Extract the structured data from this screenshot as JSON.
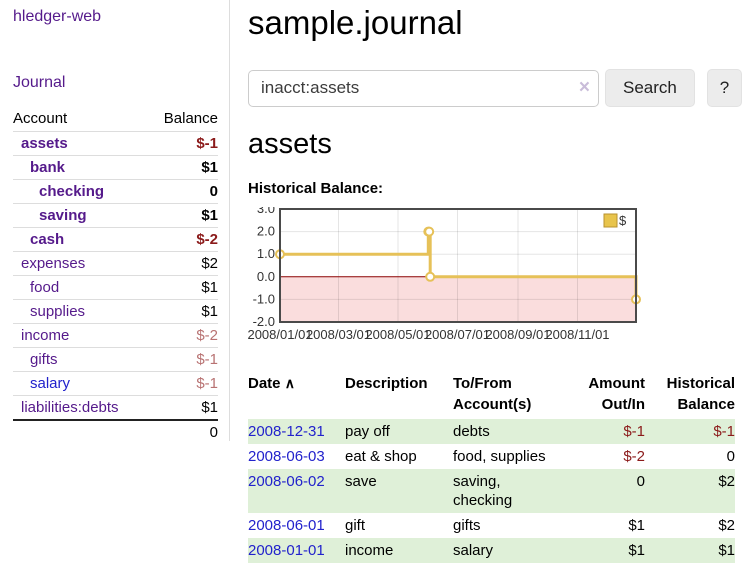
{
  "colors": {
    "link_purple": "#551a8b",
    "link_blue": "#2222cc",
    "negative_strong": "#8b1a1a",
    "negative_faded": "#b87272",
    "row_green": "#dff0d8",
    "chart_line": "#e6c158"
  },
  "sidebar": {
    "brand": "hledger-web",
    "nav": {
      "journal": "Journal"
    },
    "accounts_table": {
      "headers": {
        "account": "Account",
        "balance": "Balance"
      },
      "rows": [
        {
          "name": "assets",
          "balance": "$-1"
        },
        {
          "name": "bank",
          "balance": "$1"
        },
        {
          "name": "checking",
          "balance": "0"
        },
        {
          "name": "saving",
          "balance": "$1"
        },
        {
          "name": "cash",
          "balance": "$-2"
        },
        {
          "name": "expenses",
          "balance": "$2"
        },
        {
          "name": "food",
          "balance": "$1"
        },
        {
          "name": "supplies",
          "balance": "$1"
        },
        {
          "name": "income",
          "balance": "$-2"
        },
        {
          "name": "gifts",
          "balance": "$-1"
        },
        {
          "name": "salary",
          "balance": "$-1"
        },
        {
          "name": "liabilities:debts",
          "balance": "$1"
        }
      ],
      "total": "0"
    }
  },
  "header": {
    "page_title": "sample.journal"
  },
  "search": {
    "value": "inacct:assets",
    "clear_icon": "×",
    "button_label": "Search",
    "help_label": "?"
  },
  "account_heading": "assets",
  "chart_heading": "Historical Balance:",
  "chart_data": {
    "type": "line",
    "step": true,
    "title": "Historical Balance",
    "series": [
      {
        "name": "$",
        "points": [
          [
            "2008/01/01",
            1
          ],
          [
            "2008/06/01",
            2
          ],
          [
            "2008/06/02",
            2
          ],
          [
            "2008/06/03",
            0
          ],
          [
            "2008/12/31",
            -1
          ]
        ]
      }
    ],
    "x_range": [
      "2008/01/01",
      "2008/12/31"
    ],
    "ylim": [
      -2,
      3
    ],
    "y_ticks": [
      3,
      2,
      1,
      0,
      -1,
      -2
    ],
    "x_ticks": [
      "2008/01/01",
      "2008/03/01",
      "2008/05/01",
      "2008/07/01",
      "2008/09/01",
      "2008/11/01"
    ],
    "legend": [
      {
        "label": "$",
        "color": "#e8c44c"
      }
    ],
    "legend_position": "top-right",
    "grid": true,
    "negative_fill": "#fadddd",
    "line_color": "#e6c158",
    "zero_line_color": "#8b0000"
  },
  "transactions": {
    "headers": {
      "date": "Date",
      "sort_asc_icon": "∧",
      "description": "Description",
      "tofrom_1": "To/From",
      "tofrom_2": "Account(s)",
      "amount_1": "Amount",
      "amount_2": "Out/In",
      "hist_1": "Historical",
      "hist_2": "Balance"
    },
    "rows": [
      {
        "date": "2008-12-31",
        "description": "pay off",
        "accounts": "debts",
        "amount": "$-1",
        "balance": "$-1"
      },
      {
        "date": "2008-06-03",
        "description": "eat & shop",
        "accounts": "food, supplies",
        "amount": "$-2",
        "balance": "0"
      },
      {
        "date": "2008-06-02",
        "description": "save",
        "accounts": "saving, checking",
        "amount": "0",
        "balance": "$2"
      },
      {
        "date": "2008-06-01",
        "description": "gift",
        "accounts": "gifts",
        "amount": "$1",
        "balance": "$2"
      },
      {
        "date": "2008-01-01",
        "description": "income",
        "accounts": "salary",
        "amount": "$1",
        "balance": "$1"
      }
    ]
  }
}
